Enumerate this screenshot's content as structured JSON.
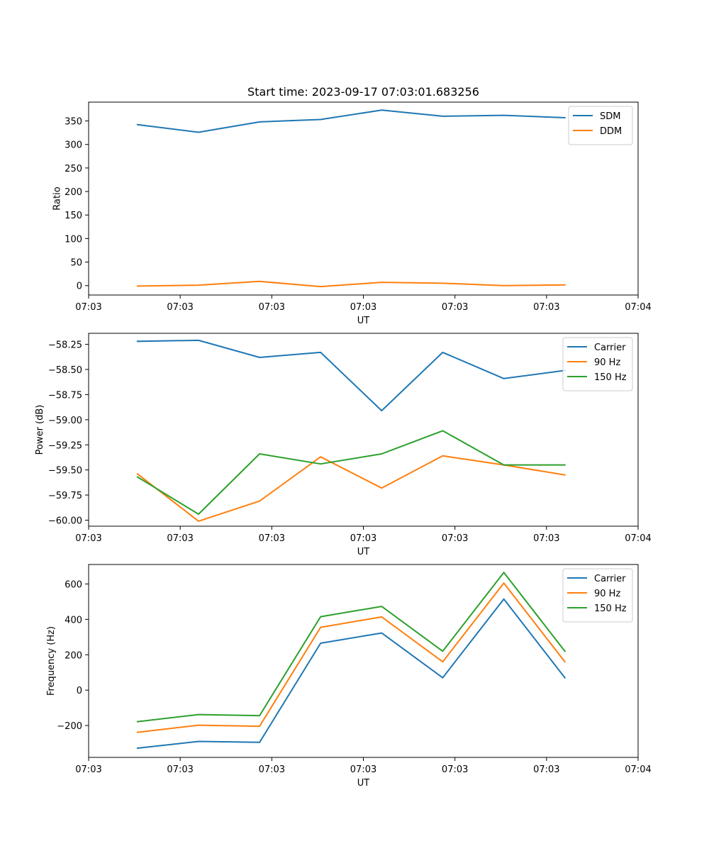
{
  "chart_data": [
    {
      "type": "line",
      "title": "Start time: 2023-09-17 07:03:01.683256",
      "xlabel": "UT",
      "ylabel": "Ratio",
      "x": [
        1,
        2,
        3,
        4,
        5,
        6,
        7,
        8
      ],
      "xlim": [
        0.2,
        9.2
      ],
      "xticks": [
        0.2,
        1.7,
        3.2,
        4.7,
        6.2,
        7.7,
        9.2
      ],
      "xtick_labels": [
        "07:03",
        "07:03",
        "07:03",
        "07:03",
        "07:03",
        "07:03",
        "07:04"
      ],
      "ylim": [
        -20,
        390
      ],
      "yticks": [
        0,
        50,
        100,
        150,
        200,
        250,
        300,
        350
      ],
      "ytick_labels": [
        "0",
        "50",
        "100",
        "150",
        "200",
        "250",
        "300",
        "350"
      ],
      "legend_position": "upper-right",
      "series": [
        {
          "name": "SDM",
          "color": "#1f77b4",
          "values": [
            342,
            326,
            348,
            353,
            373,
            360,
            362,
            357
          ]
        },
        {
          "name": "DDM",
          "color": "#ff7f0e",
          "values": [
            -1,
            1,
            9,
            -2,
            7,
            5,
            0,
            1.5
          ]
        }
      ]
    },
    {
      "type": "line",
      "title": "",
      "xlabel": "UT",
      "ylabel": "Power (dB)",
      "x": [
        1,
        2,
        3,
        4,
        5,
        6,
        7,
        8
      ],
      "xlim": [
        0.2,
        9.2
      ],
      "xticks": [
        0.2,
        1.7,
        3.2,
        4.7,
        6.2,
        7.7,
        9.2
      ],
      "xtick_labels": [
        "07:03",
        "07:03",
        "07:03",
        "07:03",
        "07:03",
        "07:03",
        "07:04"
      ],
      "ylim": [
        -60.06,
        -58.14
      ],
      "yticks": [
        -60.0,
        -59.75,
        -59.5,
        -59.25,
        -59.0,
        -58.75,
        -58.5,
        -58.25
      ],
      "ytick_labels": [
        "−60.00",
        "−59.75",
        "−59.50",
        "−59.25",
        "−59.00",
        "−58.75",
        "−58.50",
        "−58.25"
      ],
      "legend_position": "upper-right",
      "series": [
        {
          "name": "Carrier",
          "color": "#1f77b4",
          "values": [
            -58.22,
            -58.21,
            -58.38,
            -58.33,
            -58.91,
            -58.33,
            -58.59,
            -58.51
          ]
        },
        {
          "name": "90 Hz",
          "color": "#ff7f0e",
          "values": [
            -59.54,
            -60.01,
            -59.81,
            -59.37,
            -59.68,
            -59.36,
            -59.45,
            -59.55
          ]
        },
        {
          "name": "150 Hz",
          "color": "#2ca02c",
          "values": [
            -59.57,
            -59.94,
            -59.34,
            -59.44,
            -59.34,
            -59.11,
            -59.45,
            -59.45
          ]
        }
      ]
    },
    {
      "type": "line",
      "title": "",
      "xlabel": "UT",
      "ylabel": "Frequency (Hz)",
      "x": [
        1,
        2,
        3,
        4,
        5,
        6,
        7,
        8
      ],
      "xlim": [
        0.2,
        9.2
      ],
      "xticks": [
        0.2,
        1.7,
        3.2,
        4.7,
        6.2,
        7.7,
        9.2
      ],
      "xtick_labels": [
        "07:03",
        "07:03",
        "07:03",
        "07:03",
        "07:03",
        "07:03",
        "07:04"
      ],
      "ylim": [
        -380,
        710
      ],
      "yticks": [
        -200,
        0,
        200,
        400,
        600
      ],
      "ytick_labels": [
        "−200",
        "0",
        "200",
        "400",
        "600"
      ],
      "legend_position": "upper-right",
      "series": [
        {
          "name": "Carrier",
          "color": "#1f77b4",
          "values": [
            -328,
            -290,
            -295,
            265,
            323,
            70,
            515,
            70
          ]
        },
        {
          "name": "90 Hz",
          "color": "#ff7f0e",
          "values": [
            -238,
            -198,
            -204,
            355,
            414,
            160,
            605,
            160
          ]
        },
        {
          "name": "150 Hz",
          "color": "#2ca02c",
          "values": [
            -178,
            -138,
            -144,
            415,
            473,
            220,
            665,
            220
          ]
        }
      ]
    }
  ]
}
